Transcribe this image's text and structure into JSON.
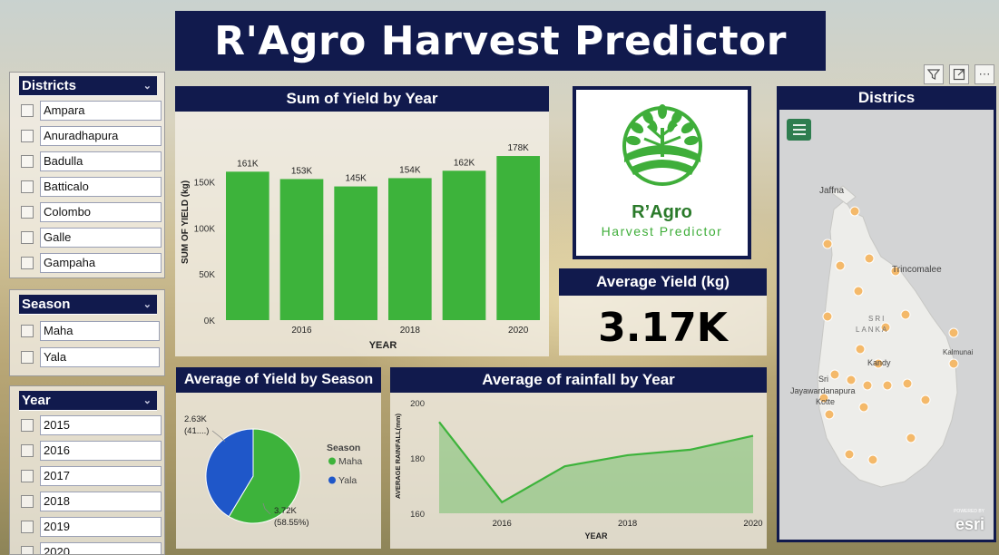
{
  "header": {
    "title": "R'Agro Harvest Predictor"
  },
  "slicers": {
    "districts": {
      "title": "Districts",
      "items": [
        "Ampara",
        "Anuradhapura",
        "Badulla",
        "Batticalo",
        "Colombo",
        "Galle",
        "Gampaha"
      ]
    },
    "season": {
      "title": "Season",
      "items": [
        "Maha",
        "Yala"
      ]
    },
    "year": {
      "title": "Year",
      "items": [
        "2015",
        "2016",
        "2017",
        "2018",
        "2019",
        "2020"
      ]
    }
  },
  "logo": {
    "name": "R’Agro",
    "tagline": "Harvest Predictor"
  },
  "kpi": {
    "title": "Average Yield (kg)",
    "value": "3.17K"
  },
  "map": {
    "title": "Districs",
    "labels": [
      "Jaffna",
      "Trincomalee",
      "SRI",
      "LANKA",
      "Kandy",
      "Kalmunai",
      "Sri",
      "Jayawardanapura",
      "Kotte"
    ],
    "brand": "esri",
    "powered": "POWERED BY"
  },
  "colors": {
    "navy": "#111a4d",
    "bar_green": "#3db33b",
    "pie_blue": "#1f57c9",
    "map_dot": "#f4b96a"
  },
  "icons": {
    "filter": "filter-icon",
    "focus": "focus-mode-icon",
    "more": "more-options-icon",
    "menu": "hamburger-menu-icon"
  },
  "chart_data": [
    {
      "type": "bar",
      "title": "Sum of Yield by Year",
      "xlabel": "YEAR",
      "ylabel": "SUM OF YIELD (kg)",
      "categories": [
        2015,
        2016,
        2017,
        2018,
        2019,
        2020
      ],
      "values": [
        161000,
        153000,
        145000,
        154000,
        162000,
        178000
      ],
      "data_labels": [
        "161K",
        "153K",
        "145K",
        "154K",
        "162K",
        "178K"
      ],
      "x_tick_labels": [
        {
          "x": 2016,
          "label": "2016"
        },
        {
          "x": 2018,
          "label": "2018"
        },
        {
          "x": 2020,
          "label": "2020"
        }
      ],
      "y_ticks": [
        0,
        50000,
        100000,
        150000
      ],
      "y_tick_labels": [
        "0K",
        "50K",
        "100K",
        "150K"
      ],
      "ylim": [
        0,
        180000
      ]
    },
    {
      "type": "pie",
      "title": "Average of Yield by Season",
      "legend_title": "Season",
      "slices": [
        {
          "name": "Maha",
          "value": 3720,
          "label_value": "3.72K",
          "label_pct": "(58.55%)"
        },
        {
          "name": "Yala",
          "value": 2630,
          "label_value": "2.63K",
          "label_pct": "(41....)"
        }
      ]
    },
    {
      "type": "area",
      "title": "Average of rainfall by Year",
      "xlabel": "YEAR",
      "ylabel": "AVERAGE RAINFALL(mm)",
      "x": [
        2015,
        2016,
        2017,
        2018,
        2019,
        2020
      ],
      "y": [
        193,
        164,
        177,
        181,
        183,
        188
      ],
      "x_ticks": [
        2016,
        2018,
        2020
      ],
      "y_ticks": [
        160,
        180,
        200
      ],
      "xlim": [
        2015,
        2020
      ],
      "ylim": [
        160,
        200
      ]
    }
  ]
}
